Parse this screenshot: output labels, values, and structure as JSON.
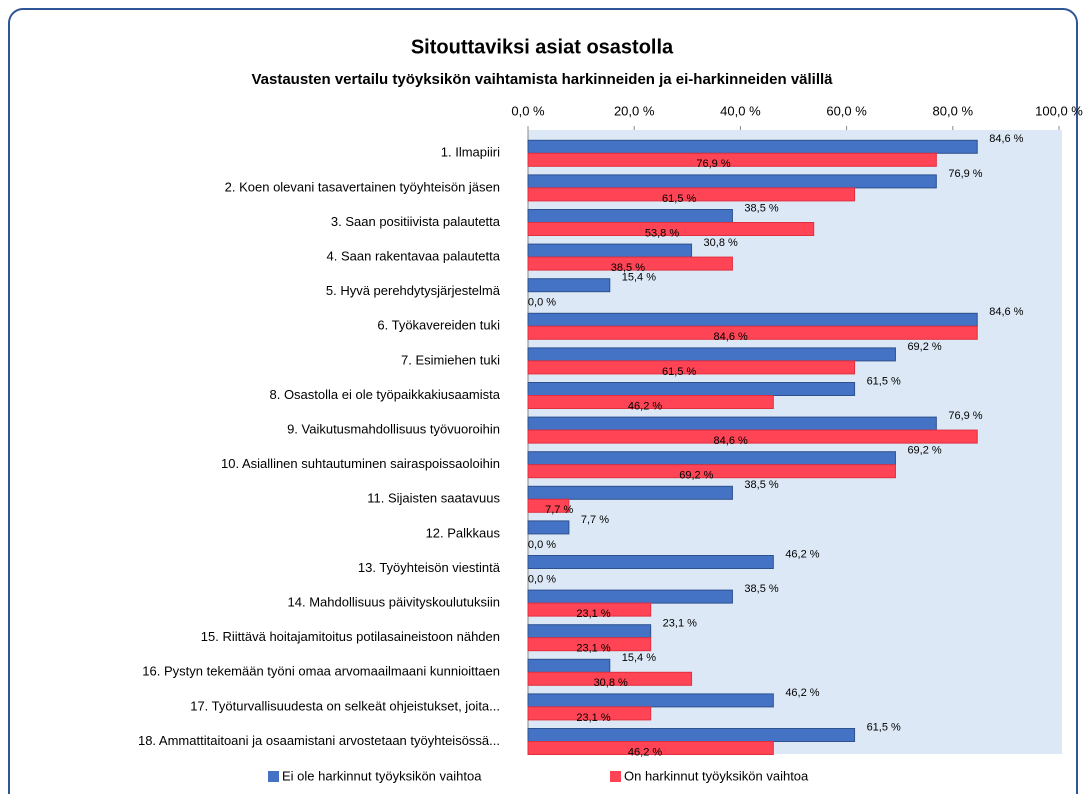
{
  "chart_data": {
    "type": "hbar",
    "title": "Sitouttaviksi asiat osastolla",
    "subtitle": "Vastausten vertailu työyksikön vaihtamista harkinneiden  ja ei-harkinneiden  välillä",
    "categories": [
      "1. Ilmapiiri",
      "2. Koen olevani tasavertainen työyhteisön jäsen",
      "3. Saan positiivista  palautetta",
      "4. Saan rakentavaa palautetta",
      "5. Hyvä perehdytysjärjestelmä",
      "6. Työkavereiden tuki",
      "7. Esimiehen  tuki",
      "8. Osastolla ei ole työpaikkakiusaamista",
      "9. Vaikutusmahdollisuus  työvuoroihin",
      "10. Asiallinen suhtautuminen  sairaspoissaoloihin",
      "11. Sijaisten  saatavuus",
      "12. Palkkaus",
      "13. Työyhteisön viestintä",
      "14. Mahdollisuus  päivityskoulutuksiin",
      "15. Riittävä hoitajamitoitus  potilasaineistoon  nähden",
      "16. Pystyn tekemään työni omaa arvomaailmaani kunnioittaen",
      "17. Työturvallisuudesta  on selkeät ohjeistukset,  joita...",
      "18. Ammattitaitoani  ja osaamistani arvostetaan  työyhteisössä..."
    ],
    "series": [
      {
        "name": "Ei ole harkinnut  työyksikön vaihtoa",
        "color": "#4472c4",
        "values": [
          84.6,
          76.9,
          38.5,
          30.8,
          15.4,
          84.6,
          69.2,
          61.5,
          76.9,
          69.2,
          38.5,
          7.7,
          46.2,
          38.5,
          23.1,
          15.4,
          46.2,
          61.5
        ],
        "value_labels": [
          "84,6 %",
          "76,9 %",
          "38,5 %",
          "30,8 %",
          "15,4 %",
          "84,6 %",
          "69,2 %",
          "61,5 %",
          "76,9 %",
          "69,2 %",
          "38,5 %",
          "7,7 %",
          "46,2 %",
          "38,5 %",
          "23,1 %",
          "15,4 %",
          "46,2 %",
          "61,5 %"
        ]
      },
      {
        "name": "On harkinnut työyksikön vaihtoa",
        "color": "#ff4455",
        "values": [
          76.9,
          61.5,
          53.8,
          38.5,
          0,
          84.6,
          61.5,
          46.2,
          84.6,
          69.2,
          7.7,
          0,
          0,
          23.1,
          23.1,
          30.8,
          23.1,
          46.2
        ],
        "value_labels": [
          "76,9 %",
          "61,5 %",
          "53,8 %",
          "38,5 %",
          "0,0 %",
          "84,6 %",
          "61,5 %",
          "46,2 %",
          "84,6 %",
          "69,2 %",
          "7,7 %",
          "0,0 %",
          "0,0 %",
          "23,1 %",
          "23,1 %",
          "30,8 %",
          "23,1 %",
          "46,2 %"
        ]
      }
    ],
    "xlim": [
      0,
      100
    ],
    "xticks": [
      {
        "value": 0,
        "label": "0,0 %"
      },
      {
        "value": 20,
        "label": "20,0 %"
      },
      {
        "value": 40,
        "label": "40,0 %"
      },
      {
        "value": 60,
        "label": "60,0 %"
      },
      {
        "value": 80,
        "label": "80,0 %"
      },
      {
        "value": 100,
        "label": "100,0 %"
      }
    ],
    "legend": "bottom"
  }
}
